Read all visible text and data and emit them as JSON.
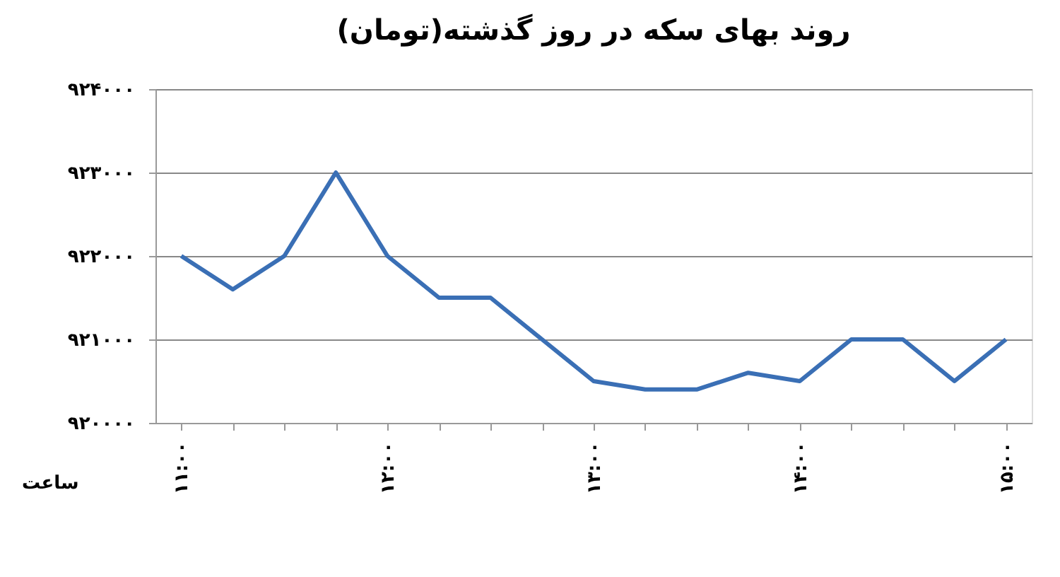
{
  "chart_data": {
    "type": "line",
    "title": "روند بهای سکه در روز گذشته(تومان)",
    "xlabel": "ساعت",
    "categories": [
      "۱۱:۰۰",
      null,
      null,
      null,
      "۱۲:۰۰",
      null,
      null,
      null,
      "۱۳:۰۰",
      null,
      null,
      null,
      "۱۴:۰۰",
      null,
      null,
      null,
      "۱۵:۰۰"
    ],
    "series": [
      {
        "color": "#3a6fb5",
        "values": [
          922000,
          921600,
          922000,
          923000,
          922000,
          921500,
          921500,
          921000,
          920500,
          920400,
          920400,
          920600,
          920500,
          921000,
          921000,
          920500,
          921000
        ]
      }
    ],
    "ylim": [
      920000,
      924000
    ],
    "yticks": [
      {
        "value": 920000,
        "label": "۹۲۰۰۰۰"
      },
      {
        "value": 921000,
        "label": "۹۲۱۰۰۰"
      },
      {
        "value": 922000,
        "label": "۹۲۲۰۰۰"
      },
      {
        "value": 923000,
        "label": "۹۲۳۰۰۰"
      },
      {
        "value": 924000,
        "label": "۹۲۴۰۰۰"
      }
    ],
    "grid": "y",
    "line_style": "solid",
    "marker": "none"
  }
}
